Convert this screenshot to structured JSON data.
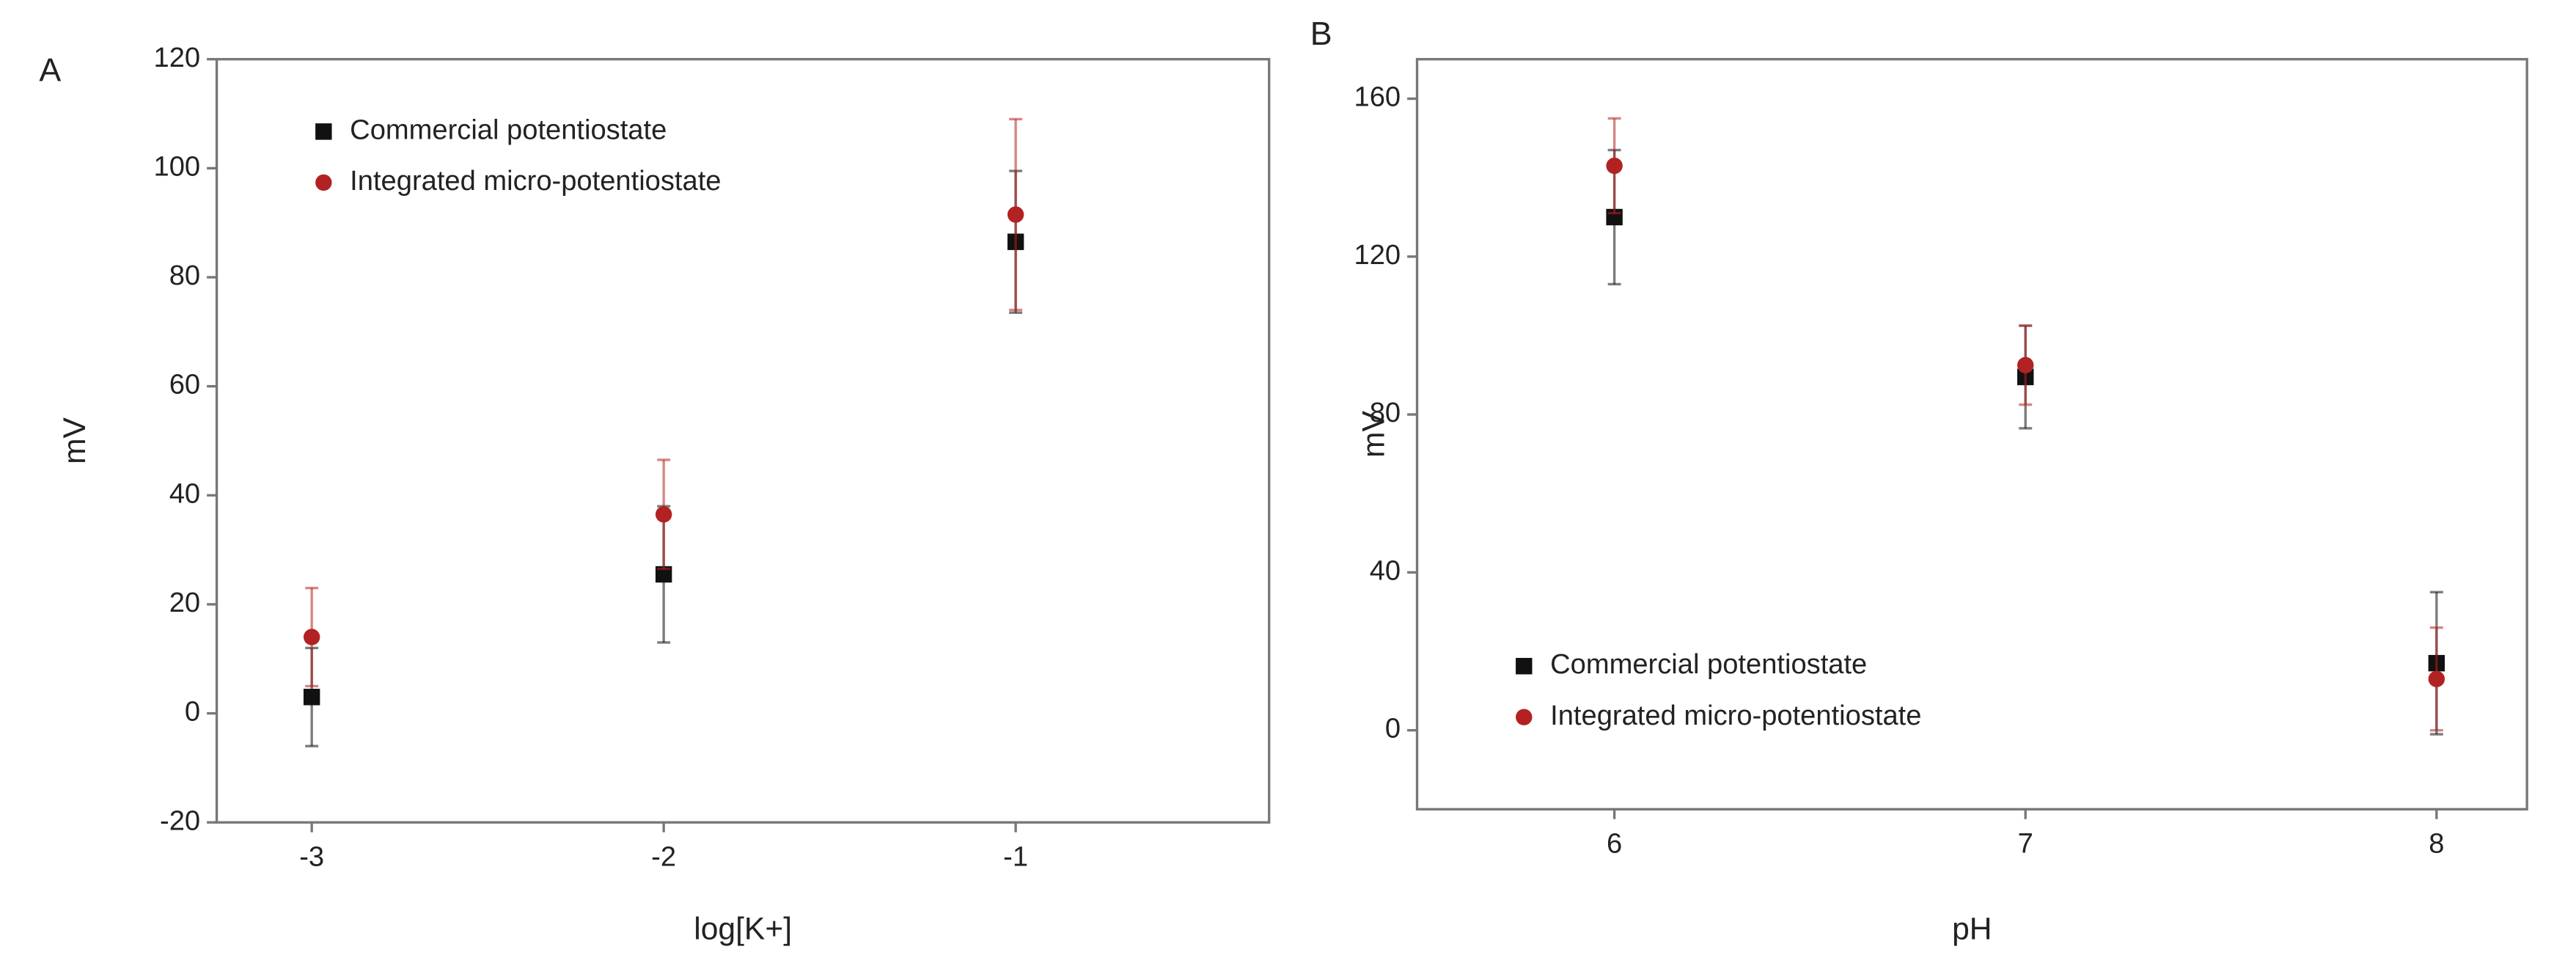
{
  "chart_data": [
    {
      "type": "scatter",
      "label": "A",
      "x_label": "log[K+]",
      "y_label": "mV",
      "x": [
        -3,
        -2,
        -1
      ],
      "series": [
        {
          "name": "Commercial potentiostate",
          "color": "#111111",
          "marker": "square",
          "values": [
            3,
            25.5,
            86.5
          ],
          "errors": [
            9,
            12.5,
            13
          ]
        },
        {
          "name": "Integrated micro-potentiostate",
          "color": "#b22222",
          "marker": "circle",
          "values": [
            14,
            36.5,
            91.5
          ],
          "errors": [
            9,
            10,
            17.5
          ]
        }
      ],
      "xlim": [
        -3.27,
        -0.28
      ],
      "xticks": [
        -3,
        -2,
        -1
      ],
      "ylim": [
        -20,
        120
      ],
      "yticks": [
        -20,
        0,
        20,
        40,
        60,
        80,
        100,
        120
      ],
      "legend": "upper left"
    },
    {
      "type": "scatter",
      "label": "B",
      "x_label": "pH",
      "y_label": "mV",
      "x": [
        6,
        7,
        8
      ],
      "series": [
        {
          "name": "Commercial potentiostate",
          "color": "#111111",
          "marker": "square",
          "values": [
            130,
            89.5,
            17
          ],
          "errors": [
            17,
            13,
            18
          ]
        },
        {
          "name": "Integrated micro-potentiostate",
          "color": "#b22222",
          "marker": "circle",
          "values": [
            143,
            92.5,
            13
          ],
          "errors": [
            12,
            10,
            13
          ]
        }
      ],
      "xlim": [
        5.52,
        8.22
      ],
      "xticks": [
        6,
        7,
        8
      ],
      "ylim": [
        -20,
        170
      ],
      "yticks": [
        0,
        40,
        80,
        120,
        160
      ],
      "legend": "lower left"
    }
  ]
}
